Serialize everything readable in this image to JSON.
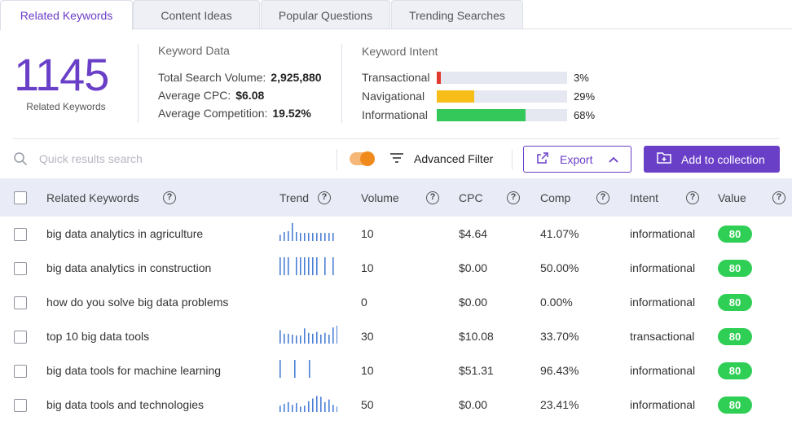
{
  "tabs": [
    "Related Keywords",
    "Content Ideas",
    "Popular Questions",
    "Trending Searches"
  ],
  "summary": {
    "count": "1145",
    "count_caption": "Related Keywords",
    "keyword_data": {
      "title": "Keyword Data",
      "rows": [
        {
          "label": "Total Search Volume:",
          "value": "2,925,880"
        },
        {
          "label": "Average CPC:",
          "value": "$6.08"
        },
        {
          "label": "Average Competition:",
          "value": "19.52%"
        }
      ]
    },
    "keyword_intent": {
      "title": "Keyword Intent",
      "rows": [
        {
          "label": "Transactional",
          "pct": "3%",
          "fraction": 0.03,
          "color": "#e03a2f"
        },
        {
          "label": "Navigational",
          "pct": "29%",
          "fraction": 0.29,
          "color": "#f7bd19"
        },
        {
          "label": "Informational",
          "pct": "68%",
          "fraction": 0.68,
          "color": "#34c759"
        }
      ]
    }
  },
  "toolbar": {
    "search_placeholder": "Quick results search",
    "advanced_filter": "Advanced Filter",
    "export": "Export",
    "add_to_collection": "Add to collection",
    "accent_color": "#6a3fc8"
  },
  "table": {
    "headers": [
      "Related Keywords",
      "Trend",
      "Volume",
      "CPC",
      "Comp",
      "Intent",
      "Value"
    ],
    "rows": [
      {
        "keyword": "big data analytics in agriculture",
        "volume": "10",
        "cpc": "$4.64",
        "comp": "41.07%",
        "intent": "informational",
        "value": "80",
        "trend": [
          0.35,
          0.5,
          0.55,
          1.0,
          0.5,
          0.45,
          0.45,
          0.45,
          0.45,
          0.45,
          0.45,
          0.45,
          0.45,
          0.45
        ]
      },
      {
        "keyword": "big data analytics in construction",
        "volume": "10",
        "cpc": "$0.00",
        "comp": "50.00%",
        "intent": "informational",
        "value": "80",
        "trend": [
          1.0,
          1.0,
          1.0,
          0.0,
          1.0,
          1.0,
          1.0,
          1.0,
          1.0,
          1.0,
          0.0,
          1.0,
          0.0,
          1.0
        ]
      },
      {
        "keyword": "how do you solve big data problems",
        "volume": "0",
        "cpc": "$0.00",
        "comp": "0.00%",
        "intent": "informational",
        "value": "80",
        "trend": []
      },
      {
        "keyword": "top 10 big data tools",
        "volume": "30",
        "cpc": "$10.08",
        "comp": "33.70%",
        "intent": "transactional",
        "value": "80",
        "trend": [
          0.75,
          0.55,
          0.55,
          0.5,
          0.45,
          0.45,
          0.85,
          0.6,
          0.55,
          0.65,
          0.5,
          0.6,
          0.5,
          0.9,
          1.0
        ]
      },
      {
        "keyword": "big data tools for machine learning",
        "volume": "10",
        "cpc": "$51.31",
        "comp": "96.43%",
        "intent": "informational",
        "value": "80",
        "trend": [
          1.0,
          0.0,
          1.0,
          0.0,
          1.0
        ]
      },
      {
        "keyword": "big data tools and technologies",
        "volume": "50",
        "cpc": "$0.00",
        "comp": "23.41%",
        "intent": "informational",
        "value": "80",
        "trend": [
          0.35,
          0.45,
          0.55,
          0.4,
          0.5,
          0.3,
          0.35,
          0.6,
          0.75,
          0.9,
          0.85,
          0.55,
          0.7,
          0.4,
          0.3,
          0.5
        ]
      }
    ]
  },
  "icons": [
    "search-icon",
    "filter-lines-icon",
    "export-share-icon",
    "chevron-up-icon",
    "folder-plus-icon",
    "help-circle-icon"
  ]
}
